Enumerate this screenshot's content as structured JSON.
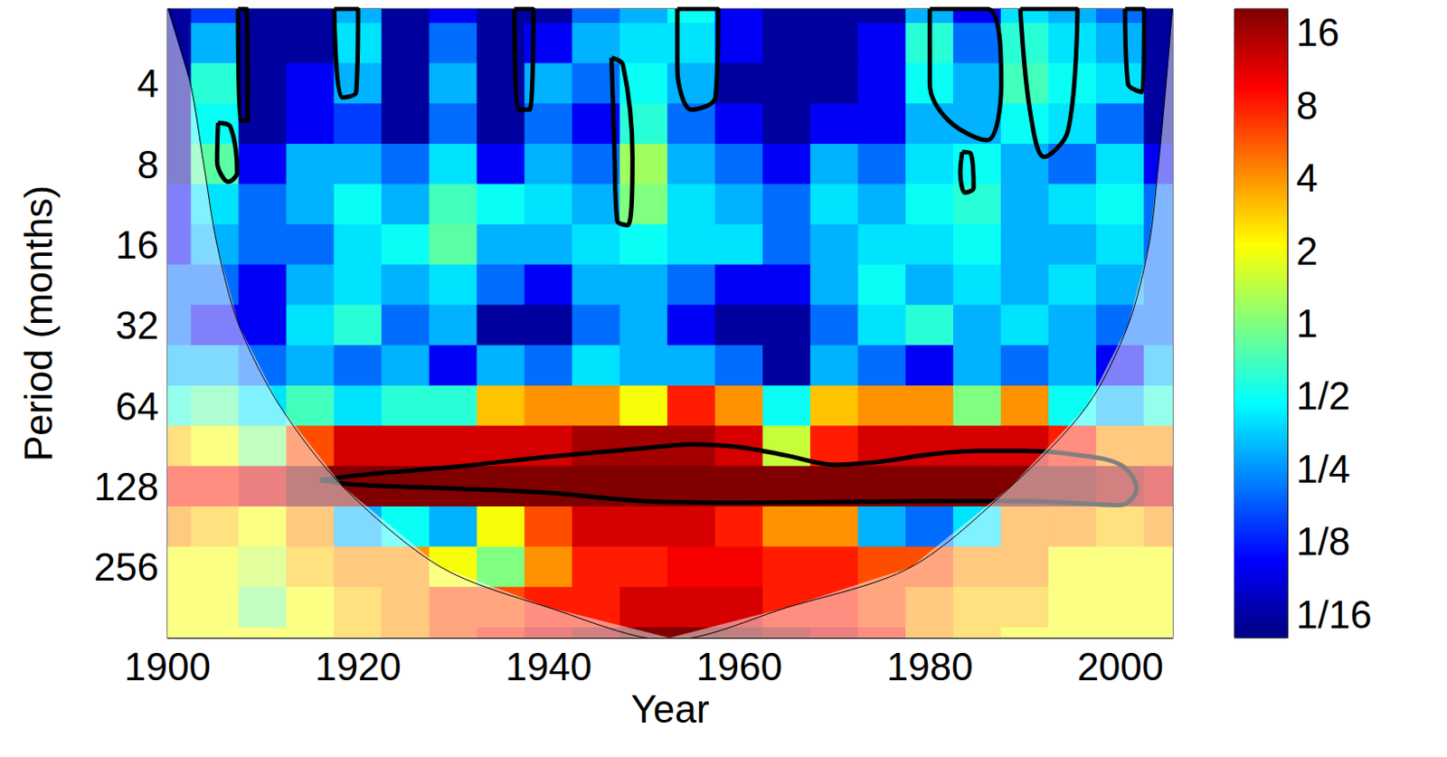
{
  "chart_data": {
    "type": "heatmap",
    "xlabel": "Year",
    "ylabel": "Period (months)",
    "log": "y",
    "grid": false,
    "xlim": [
      1900,
      2005.5
    ],
    "xticks": [
      1900,
      1920,
      1940,
      1960,
      1980,
      2000
    ],
    "ylim": [
      2.1,
      470
    ],
    "yticks": [
      4,
      8,
      16,
      32,
      64,
      128,
      256
    ],
    "cells": {
      "x": [
        1900,
        1905,
        1910,
        1915,
        1920,
        1925,
        1930,
        1935,
        1940,
        1945,
        1950,
        1955,
        1960,
        1965,
        1970,
        1975,
        1980,
        1985,
        1990,
        1995,
        2000,
        2005
      ],
      "periods": [
        2,
        2.83,
        4,
        5.66,
        8,
        11.3,
        16,
        22.6,
        32,
        45.3,
        64,
        90.5,
        128,
        181,
        256,
        362,
        512
      ],
      "power": [
        [
          0.06,
          0.15,
          0.06,
          0.06,
          0.3,
          0.06,
          0.1,
          0.06,
          0.06,
          0.2,
          0.3,
          0.5,
          0.1,
          0.06,
          0.06,
          0.06,
          0.3,
          0.1,
          0.4,
          0.3,
          0.2,
          0.06
        ],
        [
          0.06,
          0.3,
          0.06,
          0.06,
          0.4,
          0.06,
          0.2,
          0.06,
          0.1,
          0.3,
          0.4,
          0.4,
          0.1,
          0.06,
          0.06,
          0.1,
          0.6,
          0.2,
          0.6,
          0.4,
          0.3,
          0.06
        ],
        [
          0.06,
          0.6,
          0.06,
          0.1,
          0.3,
          0.06,
          0.3,
          0.06,
          0.3,
          0.2,
          0.5,
          0.3,
          0.06,
          0.06,
          0.06,
          0.1,
          0.5,
          0.3,
          0.7,
          0.5,
          0.4,
          0.06
        ],
        [
          0.06,
          0.5,
          0.06,
          0.1,
          0.15,
          0.06,
          0.2,
          0.06,
          0.2,
          0.1,
          0.6,
          0.2,
          0.1,
          0.06,
          0.1,
          0.1,
          0.3,
          0.3,
          0.5,
          0.4,
          0.2,
          0.06
        ],
        [
          0.06,
          0.8,
          0.1,
          0.3,
          0.3,
          0.2,
          0.4,
          0.1,
          0.3,
          0.2,
          1.2,
          0.3,
          0.2,
          0.1,
          0.3,
          0.2,
          0.4,
          0.5,
          0.3,
          0.2,
          0.4,
          0.1
        ],
        [
          0.1,
          0.4,
          0.2,
          0.3,
          0.5,
          0.3,
          0.7,
          0.5,
          0.4,
          0.3,
          1,
          0.4,
          0.3,
          0.2,
          0.4,
          0.3,
          0.5,
          0.6,
          0.3,
          0.4,
          0.5,
          0.2
        ],
        [
          0.1,
          0.3,
          0.2,
          0.2,
          0.4,
          0.5,
          0.8,
          0.3,
          0.3,
          0.4,
          0.5,
          0.4,
          0.4,
          0.2,
          0.3,
          0.4,
          0.4,
          0.5,
          0.3,
          0.3,
          0.4,
          0.2
        ],
        [
          0.2,
          0.2,
          0.1,
          0.3,
          0.4,
          0.3,
          0.4,
          0.2,
          0.1,
          0.3,
          0.3,
          0.2,
          0.1,
          0.1,
          0.3,
          0.5,
          0.3,
          0.4,
          0.3,
          0.4,
          0.3,
          0.2
        ],
        [
          0.2,
          0.1,
          0.1,
          0.4,
          0.6,
          0.2,
          0.3,
          0.06,
          0.06,
          0.2,
          0.3,
          0.1,
          0.06,
          0.06,
          0.2,
          0.4,
          0.6,
          0.3,
          0.4,
          0.3,
          0.2,
          0.2
        ],
        [
          0.3,
          0.3,
          0.2,
          0.3,
          0.2,
          0.3,
          0.1,
          0.3,
          0.2,
          0.4,
          0.3,
          0.3,
          0.2,
          0.06,
          0.3,
          0.2,
          0.1,
          0.3,
          0.2,
          0.3,
          0.1,
          0.3
        ],
        [
          0.6,
          0.8,
          0.4,
          0.7,
          0.4,
          0.6,
          0.6,
          3,
          4,
          4,
          2,
          8,
          4,
          0.5,
          3,
          4,
          4,
          1,
          4,
          0.5,
          0.3,
          0.6
        ],
        [
          3,
          2,
          1,
          6,
          12,
          12,
          12,
          12,
          12,
          16,
          16,
          16,
          12,
          1.5,
          8,
          12,
          12,
          12,
          12,
          8,
          4,
          4
        ],
        [
          8,
          8,
          12,
          20,
          20,
          20,
          20,
          20,
          20,
          20,
          20,
          20,
          20,
          20,
          20,
          20,
          20,
          20,
          20,
          20,
          16,
          12
        ],
        [
          4,
          3,
          2,
          4,
          0.3,
          0.5,
          0.3,
          2,
          6,
          12,
          12,
          12,
          8,
          4,
          4,
          0.3,
          0.2,
          0.4,
          4,
          4,
          3,
          4
        ],
        [
          2,
          2,
          1.5,
          3,
          4,
          4,
          2,
          1,
          4,
          8,
          8,
          10,
          10,
          8,
          8,
          6,
          6,
          4,
          4,
          2,
          2,
          2
        ],
        [
          2,
          2,
          1,
          2,
          3,
          4,
          6,
          6,
          8,
          8,
          12,
          12,
          12,
          8,
          8,
          6,
          4,
          3,
          3,
          2,
          2,
          2
        ],
        [
          2,
          2,
          2,
          2,
          3,
          4,
          6,
          8,
          12,
          16,
          20,
          20,
          20,
          16,
          12,
          8,
          4,
          3,
          2,
          2,
          2,
          2
        ]
      ]
    },
    "colorbar": {
      "range": [
        0.05,
        20
      ],
      "ticks": [
        16,
        8,
        4,
        2,
        1,
        {
          "value": 0.5,
          "label": "1/2"
        },
        {
          "value": 0.25,
          "label": "1/4"
        },
        {
          "value": 0.125,
          "label": "1/8"
        },
        {
          "value": 0.0625,
          "label": "1/16"
        }
      ]
    },
    "coi": {
      "years": [
        1900,
        1902.4,
        1903.8,
        1905.2,
        1907.5,
        1911.8,
        1918.4,
        1928.7,
        1940,
        1952.7,
        1965,
        1978,
        1988.5,
        1996.5,
        2000.8,
        2003,
        2004,
        2004.8,
        2005.5
      ],
      "periods": [
        2,
        4,
        8,
        16,
        32,
        64,
        128,
        256,
        362,
        480,
        362,
        256,
        128,
        64,
        32,
        16,
        8,
        4,
        2
      ]
    },
    "contours": [
      [
        [
          1916,
          121
        ],
        [
          1920,
          116
        ],
        [
          1930,
          108
        ],
        [
          1940,
          99
        ],
        [
          1950,
          92
        ],
        [
          1955,
          89
        ],
        [
          1960,
          91
        ],
        [
          1965,
          98
        ],
        [
          1970,
          106
        ],
        [
          1975,
          103
        ],
        [
          1980,
          97
        ],
        [
          1985,
          94
        ],
        [
          1990,
          94
        ],
        [
          1995,
          97
        ],
        [
          2000,
          106
        ],
        [
          2001.7,
          130
        ],
        [
          2000,
          150
        ],
        [
          1990,
          145
        ],
        [
          1980,
          145
        ],
        [
          1960,
          147
        ],
        [
          1950,
          145
        ],
        [
          1940,
          135
        ],
        [
          1930,
          130
        ],
        [
          1920,
          126
        ],
        [
          1916,
          121
        ]
      ],
      [
        [
          1905.3,
          5.6
        ],
        [
          1906.6,
          5.8
        ],
        [
          1907.3,
          8.6
        ],
        [
          1906.4,
          9.3
        ],
        [
          1905.2,
          7.8
        ],
        [
          1905.3,
          5.6
        ]
      ],
      [
        [
          1946.6,
          3.2
        ],
        [
          1947.8,
          3.4
        ],
        [
          1948.8,
          7.5
        ],
        [
          1948.3,
          13.5
        ],
        [
          1947.2,
          13
        ],
        [
          1946.9,
          7
        ],
        [
          1946.6,
          3.2
        ]
      ],
      [
        [
          1983.4,
          7.2
        ],
        [
          1984.3,
          7.3
        ],
        [
          1984.6,
          9.8
        ],
        [
          1983.7,
          10.2
        ],
        [
          1983.2,
          8.6
        ],
        [
          1983.4,
          7.2
        ]
      ],
      [
        [
          1907.4,
          2.1
        ],
        [
          1908.3,
          2.1
        ],
        [
          1908.4,
          5.5
        ],
        [
          1907.6,
          5.5
        ],
        [
          1907.4,
          2.1
        ]
      ],
      [
        [
          1917.5,
          2.1
        ],
        [
          1920,
          2.1
        ],
        [
          1919.8,
          4.3
        ],
        [
          1918.3,
          4.5
        ],
        [
          1917.5,
          2.1
        ]
      ],
      [
        [
          1936.4,
          2.1
        ],
        [
          1938.4,
          2.1
        ],
        [
          1938,
          5
        ],
        [
          1936.8,
          5
        ],
        [
          1936.4,
          2.1
        ]
      ],
      [
        [
          1953.5,
          2.1
        ],
        [
          1957.8,
          2.1
        ],
        [
          1957.5,
          4.5
        ],
        [
          1955,
          5
        ],
        [
          1953.5,
          3.5
        ],
        [
          1953.5,
          2.1
        ]
      ],
      [
        [
          1980,
          2.1
        ],
        [
          1986,
          2.1
        ],
        [
          1987.5,
          4
        ],
        [
          1986,
          6.5
        ],
        [
          1982,
          5.5
        ],
        [
          1980,
          4
        ],
        [
          1980,
          2.1
        ]
      ],
      [
        [
          1989.5,
          2.1
        ],
        [
          1995.5,
          2.1
        ],
        [
          1994.5,
          6
        ],
        [
          1992,
          7.5
        ],
        [
          1990.5,
          5
        ],
        [
          1989.5,
          2.1
        ]
      ],
      [
        [
          2000.5,
          2.1
        ],
        [
          2002.5,
          2.1
        ],
        [
          2002.3,
          4.3
        ],
        [
          2000.8,
          4
        ],
        [
          2000.5,
          2.1
        ]
      ]
    ]
  }
}
